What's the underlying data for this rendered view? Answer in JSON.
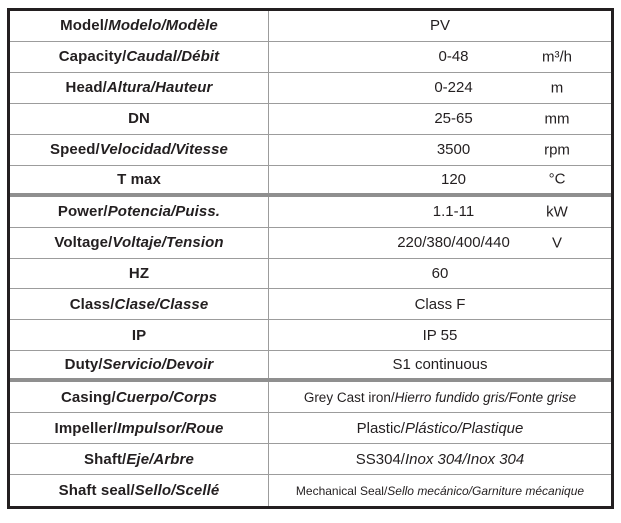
{
  "colors": {
    "text": "#231f20",
    "border": "#231f20",
    "grid": "#9c9c9c",
    "divider": "#8f8f8f",
    "bg": "#ffffff"
  },
  "table": {
    "description": "Pump specification table, trilingual English/Spanish/French",
    "rows": [
      {
        "label_plain": "Model/",
        "label_italic": "Modelo/Modèle",
        "value_plain": "PV",
        "value_italic": "",
        "unit": ""
      },
      {
        "label_plain": "Capacity/",
        "label_italic": "Caudal/Débit",
        "value_plain": "0-48",
        "value_italic": "",
        "unit": "m³/h"
      },
      {
        "label_plain": "Head/",
        "label_italic": "Altura/Hauteur",
        "value_plain": "0-224",
        "value_italic": "",
        "unit": "m"
      },
      {
        "label_plain": "DN",
        "label_italic": "",
        "value_plain": "25-65",
        "value_italic": "",
        "unit": "mm"
      },
      {
        "label_plain": "Speed/",
        "label_italic": "Velocidad/Vitesse",
        "value_plain": "3500",
        "value_italic": "",
        "unit": "rpm"
      },
      {
        "label_plain": "T max",
        "label_italic": "",
        "value_plain": "120",
        "value_italic": "",
        "unit": "°C"
      },
      {
        "label_plain": "Power/",
        "label_italic": "Potencia/Puiss.",
        "value_plain": "1.1-11",
        "value_italic": "",
        "unit": "kW"
      },
      {
        "label_plain": "Voltage/",
        "label_italic": "Voltaje/Tension",
        "value_plain": "220/380/400/440",
        "value_italic": "",
        "unit": "V"
      },
      {
        "label_plain": "HZ",
        "label_italic": "",
        "value_plain": "60",
        "value_italic": "",
        "unit": ""
      },
      {
        "label_plain": "Class/",
        "label_italic": "Clase/Classe",
        "value_plain": "Class F",
        "value_italic": "",
        "unit": ""
      },
      {
        "label_plain": "IP",
        "label_italic": "",
        "value_plain": "IP 55",
        "value_italic": "",
        "unit": ""
      },
      {
        "label_plain": "Duty/",
        "label_italic": "Servicio/Devoir",
        "value_plain": "S1 continuous",
        "value_italic": "",
        "unit": ""
      },
      {
        "label_plain": "Casing/",
        "label_italic": "Cuerpo/Corps",
        "value_plain": "Grey Cast iron/",
        "value_italic": "Hierro fundido gris/Fonte grise",
        "unit": ""
      },
      {
        "label_plain": "Impeller/",
        "label_italic": "Impulsor/Roue",
        "value_plain": "Plastic/",
        "value_italic": "Plástico/Plastique",
        "unit": ""
      },
      {
        "label_plain": "Shaft/",
        "label_italic": "Eje/Arbre",
        "value_plain": "SS304/",
        "value_italic": "Inox 304/Inox 304",
        "unit": ""
      },
      {
        "label_plain": "Shaft seal/",
        "label_italic": "Sello/Scellé",
        "value_plain": "Mechanical Seal/",
        "value_italic": "Sello mecánico/Garniture mécanique",
        "unit": ""
      }
    ]
  }
}
